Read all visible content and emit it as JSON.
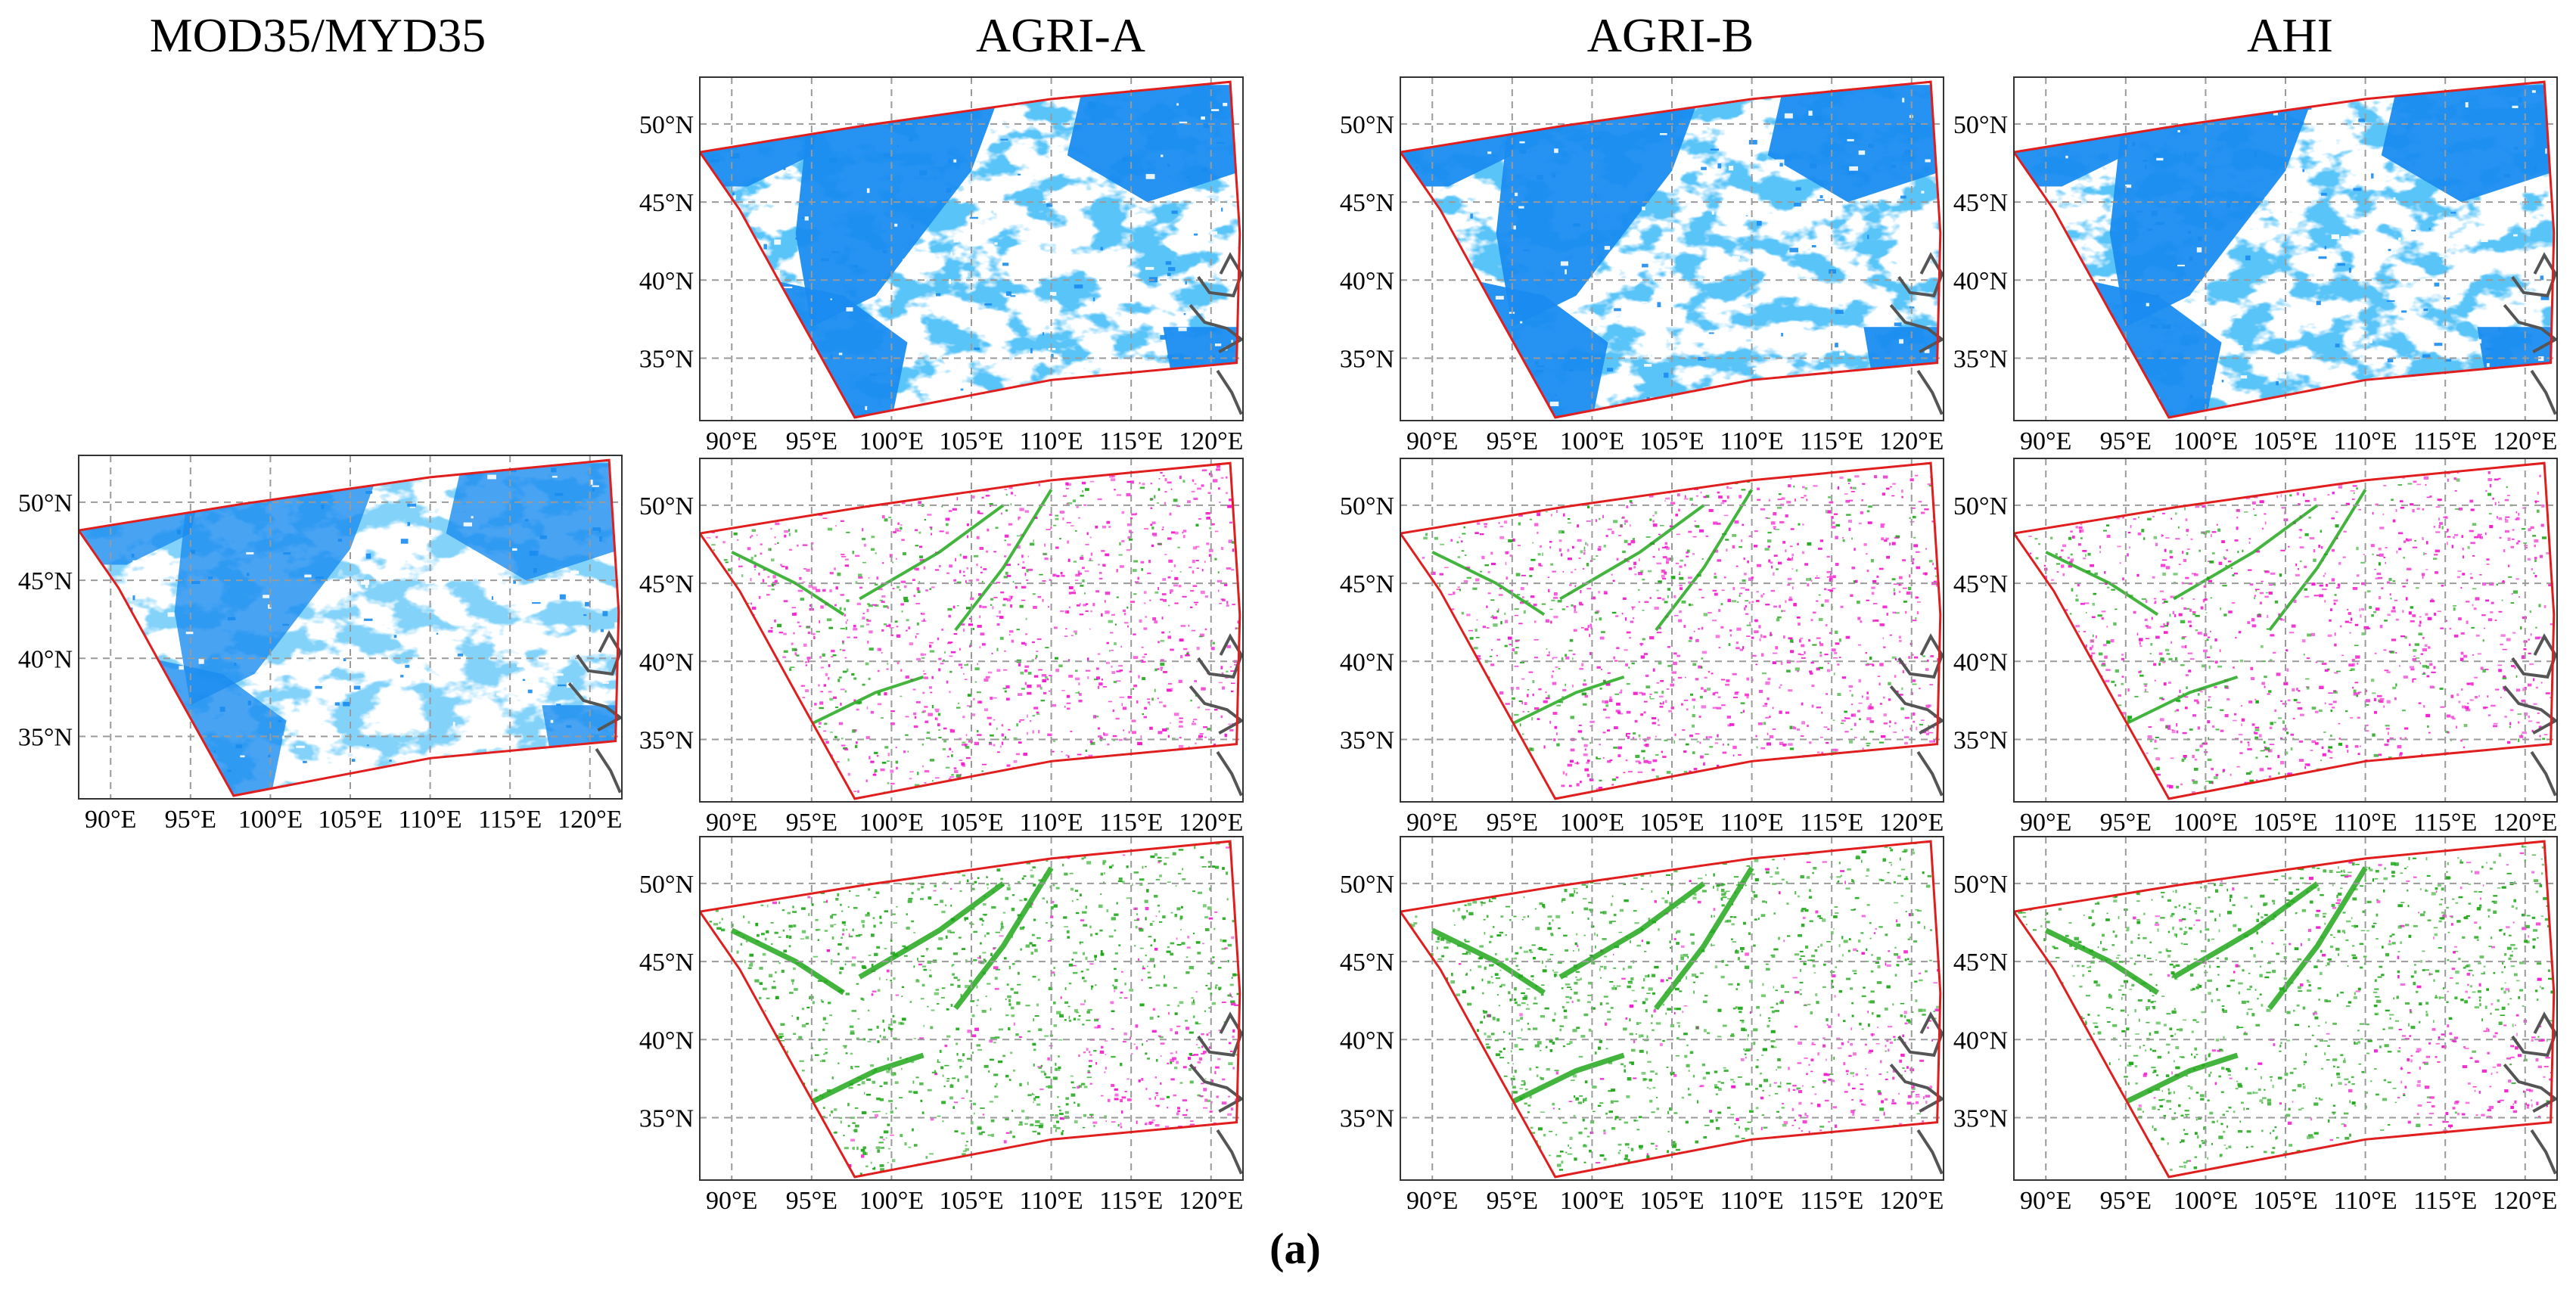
{
  "column_titles": {
    "reference": "MOD35/MYD35",
    "agri_a": "AGRI-A",
    "agri_b": "AGRI-B",
    "ahi": "AHI"
  },
  "panel_label": "(a)",
  "map_axes": {
    "lon_range": [
      88,
      122
    ],
    "lat_range": [
      31,
      53
    ],
    "lon_ticks": [
      90,
      95,
      100,
      105,
      110,
      115,
      120
    ],
    "lat_ticks": [
      35,
      40,
      45,
      50
    ],
    "lon_tick_labels": [
      "90°E",
      "95°E",
      "100°E",
      "105°E",
      "110°E",
      "115°E",
      "120°E"
    ],
    "lat_tick_labels": [
      "35°N",
      "40°N",
      "45°N",
      "50°N"
    ],
    "gridlines": "dashed"
  },
  "colors": {
    "cloud": "#1a8cf0",
    "cloud_light": "#8ec8f6",
    "green": "#22a81c",
    "magenta": "#f21ccf",
    "domain_outline": "#e01e1e",
    "coast": "#555555",
    "grid": "#9a9a9a",
    "frame": "#333333"
  },
  "rows": [
    {
      "row": 1,
      "content": "cloud-mask"
    },
    {
      "row": 2,
      "content": "difference"
    },
    {
      "row": 3,
      "content": "difference"
    }
  ]
}
